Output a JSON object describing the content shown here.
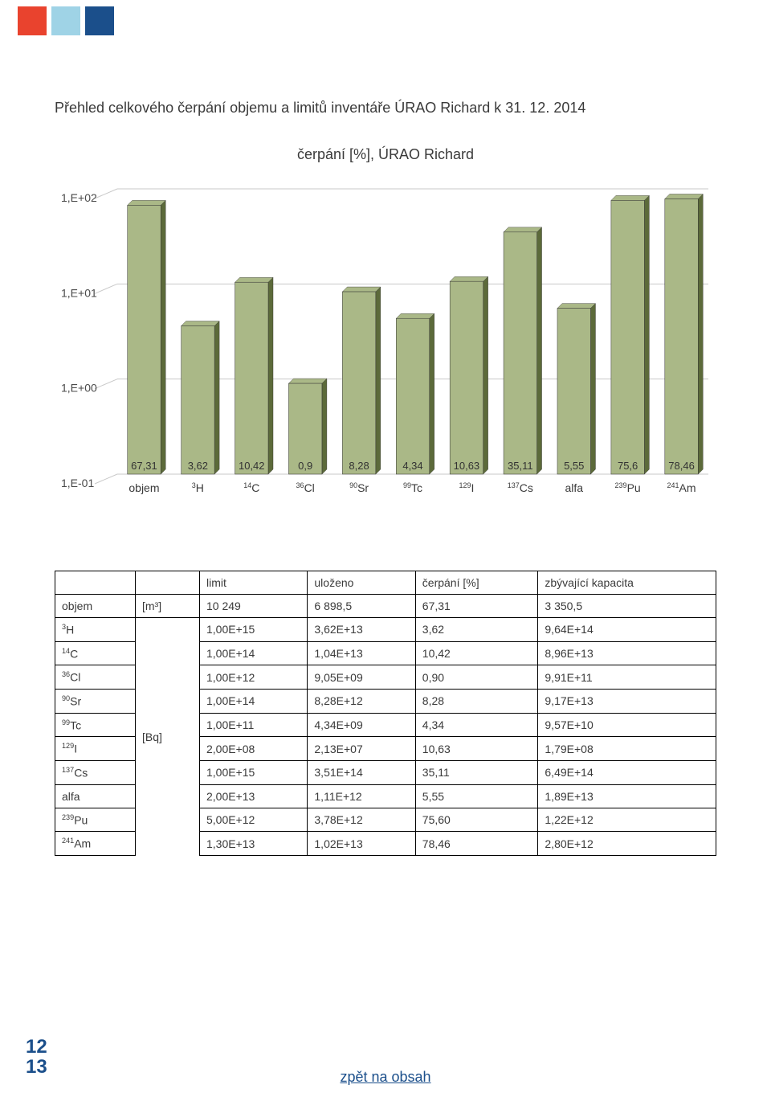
{
  "top_squares": {
    "colors": [
      "#e9432e",
      "#9fd3e6",
      "#1b4f8b"
    ]
  },
  "page_title": "Přehled celkového čerpání objemu a limitů inventáře ÚRAO Richard k 31. 12. 2014",
  "chart": {
    "title": "čerpání [%], ÚRAO Richard",
    "bar_color": "#aab887",
    "bar_dark": "#5c6a3a",
    "grid_color": "#c9c9c9",
    "y_label_color": "#4a4a4a",
    "y_labels": [
      "1,E+02",
      "1,E+01",
      "1,E+00",
      "1,E-01"
    ],
    "bars": [
      {
        "cat": "objem",
        "sup": "",
        "val": 67.31,
        "lbl": "67,31"
      },
      {
        "cat": "H",
        "sup": "3",
        "val": 3.62,
        "lbl": "3,62"
      },
      {
        "cat": "C",
        "sup": "14",
        "val": 10.42,
        "lbl": "10,42"
      },
      {
        "cat": "Cl",
        "sup": "36",
        "val": 0.9,
        "lbl": "0,9"
      },
      {
        "cat": "Sr",
        "sup": "90",
        "val": 8.28,
        "lbl": "8,28"
      },
      {
        "cat": "Tc",
        "sup": "99",
        "val": 4.34,
        "lbl": "4,34"
      },
      {
        "cat": "I",
        "sup": "129",
        "val": 10.63,
        "lbl": "10,63"
      },
      {
        "cat": "Cs",
        "sup": "137",
        "val": 35.11,
        "lbl": "35,11"
      },
      {
        "cat": "alfa",
        "sup": "",
        "val": 5.55,
        "lbl": "5,55"
      },
      {
        "cat": "Pu",
        "sup": "239",
        "val": 75.6,
        "lbl": "75,6"
      },
      {
        "cat": "Am",
        "sup": "241",
        "val": 78.46,
        "lbl": "78,46"
      }
    ]
  },
  "table": {
    "headers": [
      "limit",
      "uloženo",
      "čerpání  [%]",
      "zbývající kapacita"
    ],
    "unit1": "[m³]",
    "unit2": "[Bq]",
    "rows": [
      {
        "label": "objem",
        "sup": "",
        "limit": "10 249",
        "ulozeno": "6 898,5",
        "cerp": "67,31",
        "zbyv": "3 350,5"
      },
      {
        "label": "H",
        "sup": "3",
        "limit": "1,00E+15",
        "ulozeno": "3,62E+13",
        "cerp": "3,62",
        "zbyv": "9,64E+14"
      },
      {
        "label": "C",
        "sup": "14",
        "limit": "1,00E+14",
        "ulozeno": "1,04E+13",
        "cerp": "10,42",
        "zbyv": "8,96E+13"
      },
      {
        "label": "Cl",
        "sup": "36",
        "limit": "1,00E+12",
        "ulozeno": "9,05E+09",
        "cerp": "0,90",
        "zbyv": "9,91E+11"
      },
      {
        "label": "Sr",
        "sup": "90",
        "limit": "1,00E+14",
        "ulozeno": "8,28E+12",
        "cerp": "8,28",
        "zbyv": "9,17E+13"
      },
      {
        "label": "Tc",
        "sup": "99",
        "limit": "1,00E+11",
        "ulozeno": "4,34E+09",
        "cerp": "4,34",
        "zbyv": "9,57E+10"
      },
      {
        "label": "I",
        "sup": "129",
        "limit": "2,00E+08",
        "ulozeno": "2,13E+07",
        "cerp": "10,63",
        "zbyv": "1,79E+08"
      },
      {
        "label": "Cs",
        "sup": "137",
        "limit": "1,00E+15",
        "ulozeno": "3,51E+14",
        "cerp": "35,11",
        "zbyv": "6,49E+14"
      },
      {
        "label": "alfa",
        "sup": "",
        "limit": "2,00E+13",
        "ulozeno": "1,11E+12",
        "cerp": "5,55",
        "zbyv": "1,89E+13"
      },
      {
        "label": "Pu",
        "sup": "239",
        "limit": "5,00E+12",
        "ulozeno": "3,78E+12",
        "cerp": "75,60",
        "zbyv": "1,22E+12"
      },
      {
        "label": "Am",
        "sup": "241",
        "limit": "1,30E+13",
        "ulozeno": "1,02E+13",
        "cerp": "78,46",
        "zbyv": "2,80E+12"
      }
    ]
  },
  "page_nums": [
    "12",
    "13"
  ],
  "back_link": "zpět na obsah"
}
